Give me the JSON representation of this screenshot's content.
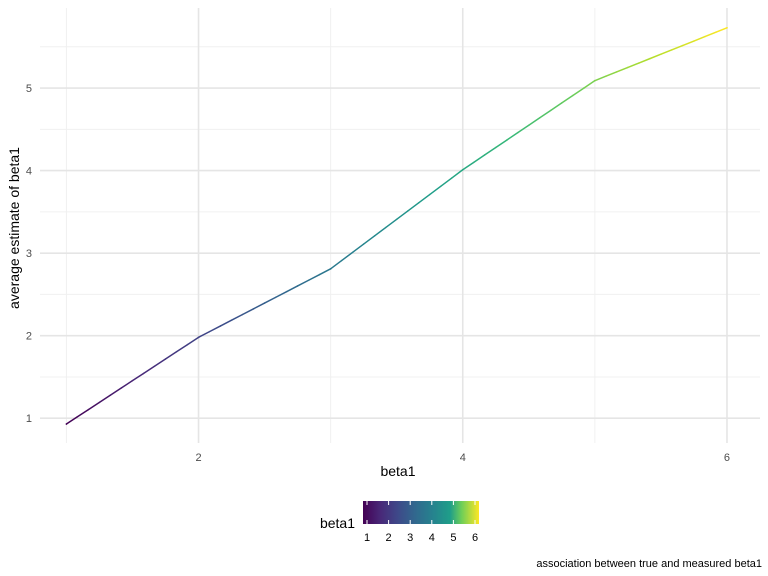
{
  "chart_data": {
    "type": "line",
    "title": "",
    "xlabel": "beta1",
    "ylabel": "average estimate of beta1",
    "caption": "association between true and measured beta1",
    "x": [
      1,
      2,
      3,
      4,
      5,
      6
    ],
    "series": [
      {
        "values": [
          0.93,
          1.98,
          2.81,
          4.01,
          5.09,
          5.73
        ]
      }
    ],
    "color_by": "x",
    "color_scale": "viridis",
    "xlim": [
      0.8,
      6.25
    ],
    "ylim": [
      0.7,
      5.97
    ],
    "x_ticks": [
      2,
      4,
      6
    ],
    "x_tick_labels": [
      "2",
      "4",
      "6"
    ],
    "y_ticks": [
      1,
      2,
      3,
      4,
      5
    ],
    "y_tick_labels": [
      "1",
      "2",
      "3",
      "4",
      "5"
    ],
    "grid": true,
    "legend": {
      "title": "beta1",
      "placement": "bottom",
      "type": "colorbar",
      "range": [
        1,
        6
      ],
      "ticks": [
        "1",
        "2",
        "3",
        "4",
        "5",
        "6"
      ]
    }
  }
}
